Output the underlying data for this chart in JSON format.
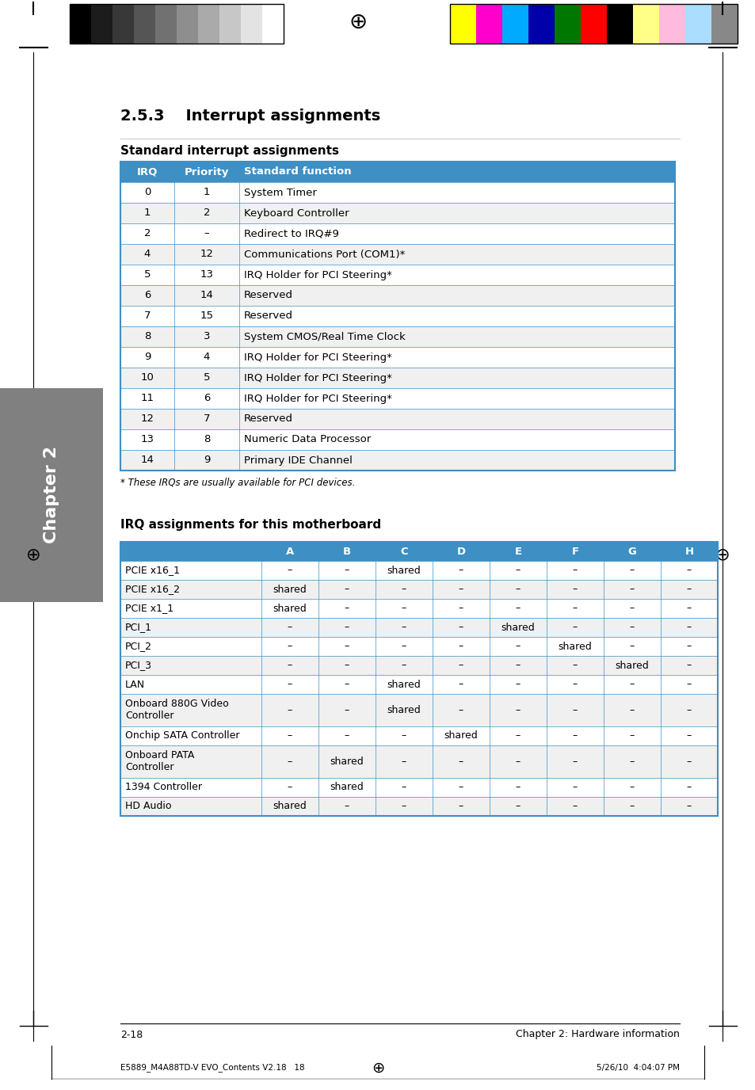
{
  "page_title": "2.5.3    Interrupt assignments",
  "section1_title": "Standard interrupt assignments",
  "section2_title": "IRQ assignments for this motherboard",
  "footnote": "* These IRQs are usually available for PCI devices.",
  "header_bg": "#3d8fc4",
  "header_text_color": "#ffffff",
  "table1_header": [
    "IRQ",
    "Priority",
    "Standard function"
  ],
  "table1_rows": [
    [
      "0",
      "1",
      "System Timer"
    ],
    [
      "1",
      "2",
      "Keyboard Controller"
    ],
    [
      "2",
      "–",
      "Redirect to IRQ#9"
    ],
    [
      "4",
      "12",
      "Communications Port (COM1)*"
    ],
    [
      "5",
      "13",
      "IRQ Holder for PCI Steering*"
    ],
    [
      "6",
      "14",
      "Reserved"
    ],
    [
      "7",
      "15",
      "Reserved"
    ],
    [
      "8",
      "3",
      "System CMOS/Real Time Clock"
    ],
    [
      "9",
      "4",
      "IRQ Holder for PCI Steering*"
    ],
    [
      "10",
      "5",
      "IRQ Holder for PCI Steering*"
    ],
    [
      "11",
      "6",
      "IRQ Holder for PCI Steering*"
    ],
    [
      "12",
      "7",
      "Reserved"
    ],
    [
      "13",
      "8",
      "Numeric Data Processor"
    ],
    [
      "14",
      "9",
      "Primary IDE Channel"
    ]
  ],
  "table2_header": [
    "",
    "A",
    "B",
    "C",
    "D",
    "E",
    "F",
    "G",
    "H"
  ],
  "table2_rows": [
    [
      "PCIE x16_1",
      "–",
      "–",
      "shared",
      "–",
      "–",
      "–",
      "–",
      "–"
    ],
    [
      "PCIE x16_2",
      "shared",
      "–",
      "–",
      "–",
      "–",
      "–",
      "–",
      "–"
    ],
    [
      "PCIE x1_1",
      "shared",
      "–",
      "–",
      "–",
      "–",
      "–",
      "–",
      "–"
    ],
    [
      "PCI_1",
      "–",
      "–",
      "–",
      "–",
      "shared",
      "–",
      "–",
      "–"
    ],
    [
      "PCI_2",
      "–",
      "–",
      "–",
      "–",
      "–",
      "shared",
      "–",
      "–"
    ],
    [
      "PCI_3",
      "–",
      "–",
      "–",
      "–",
      "–",
      "–",
      "shared",
      "–"
    ],
    [
      "LAN",
      "–",
      "–",
      "shared",
      "–",
      "–",
      "–",
      "–",
      "–"
    ],
    [
      "Onboard 880G Video\nController",
      "–",
      "–",
      "shared",
      "–",
      "–",
      "–",
      "–",
      "–"
    ],
    [
      "Onchip SATA Controller",
      "–",
      "–",
      "–",
      "shared",
      "–",
      "–",
      "–",
      "–"
    ],
    [
      "Onboard PATA\nController",
      "–",
      "shared",
      "–",
      "–",
      "–",
      "–",
      "–",
      "–"
    ],
    [
      "1394 Controller",
      "–",
      "shared",
      "–",
      "–",
      "–",
      "–",
      "–",
      "–"
    ],
    [
      "HD Audio",
      "shared",
      "–",
      "–",
      "–",
      "–",
      "–",
      "–",
      "–"
    ]
  ],
  "row_colors": [
    "#ffffff",
    "#f0f0f0"
  ],
  "border_color": "#3d8fc4",
  "line_color": "#aaaaaa",
  "text_color": "#000000",
  "sidebar_text": "Chapter 2",
  "sidebar_bg": "#808080",
  "gray_strip_colors": [
    "#000000",
    "#1c1c1c",
    "#383838",
    "#555555",
    "#717171",
    "#8e8e8e",
    "#aaaaaa",
    "#c7c7c7",
    "#e3e3e3",
    "#ffffff"
  ],
  "color_strip_colors": [
    "#ffff00",
    "#ff00cc",
    "#00aaff",
    "#0000aa",
    "#007700",
    "#ff0000",
    "#000000",
    "#ffff88",
    "#ffbbdd",
    "#aaddff",
    "#888888"
  ],
  "footer_left": "2-18",
  "footer_center_bottom": "E5889_M4A88TD-V EVO_Contents V2.18   18",
  "footer_right": "Chapter 2: Hardware information",
  "footer_right_bottom": "5/26/10  4:04:07 PM",
  "page_bg": "#ffffff"
}
